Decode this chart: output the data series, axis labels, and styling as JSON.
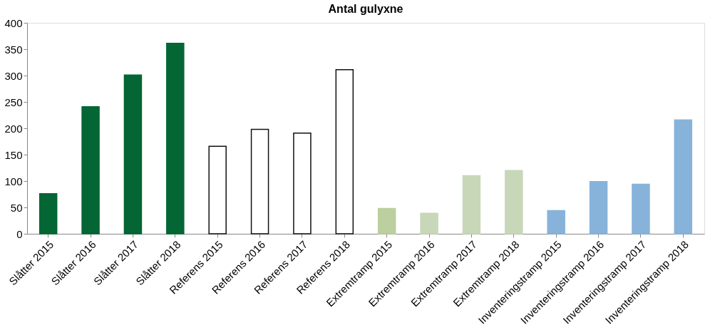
{
  "chart_data": {
    "type": "bar",
    "title": "Antal gulyxne",
    "categories": [
      "Slåtter 2015",
      "Slåtter 2016",
      "Slåtter 2017",
      "Slåtter 2018",
      "Referens 2015",
      "Referens 2016",
      "Referens 2017",
      "Referens 2018",
      "Extremtramp 2015",
      "Extremtramp 2016",
      "Extremtramp 2017",
      "Extremtramp 2018",
      "Inventeringstramp 2015",
      "Inventeringstramp 2016",
      "Inventeringstramp 2017",
      "Inventeringstramp 2018"
    ],
    "values": [
      76,
      241,
      301,
      361,
      166,
      198,
      191,
      311,
      48,
      39,
      110,
      120,
      44,
      99,
      94,
      216
    ],
    "colors": [
      "#036634",
      "#036634",
      "#036634",
      "#036634",
      "#ffffff",
      "#ffffff",
      "#ffffff",
      "#ffffff",
      "#bccf9f",
      "#c8d7b8",
      "#c8d7b8",
      "#c8d7b8",
      "#87b3da",
      "#87b3da",
      "#87b3da",
      "#87b3da"
    ],
    "ylim": [
      0,
      400
    ],
    "yticks": [
      0,
      50,
      100,
      150,
      200,
      250,
      300,
      350,
      400
    ],
    "grid": false,
    "legend": false
  }
}
